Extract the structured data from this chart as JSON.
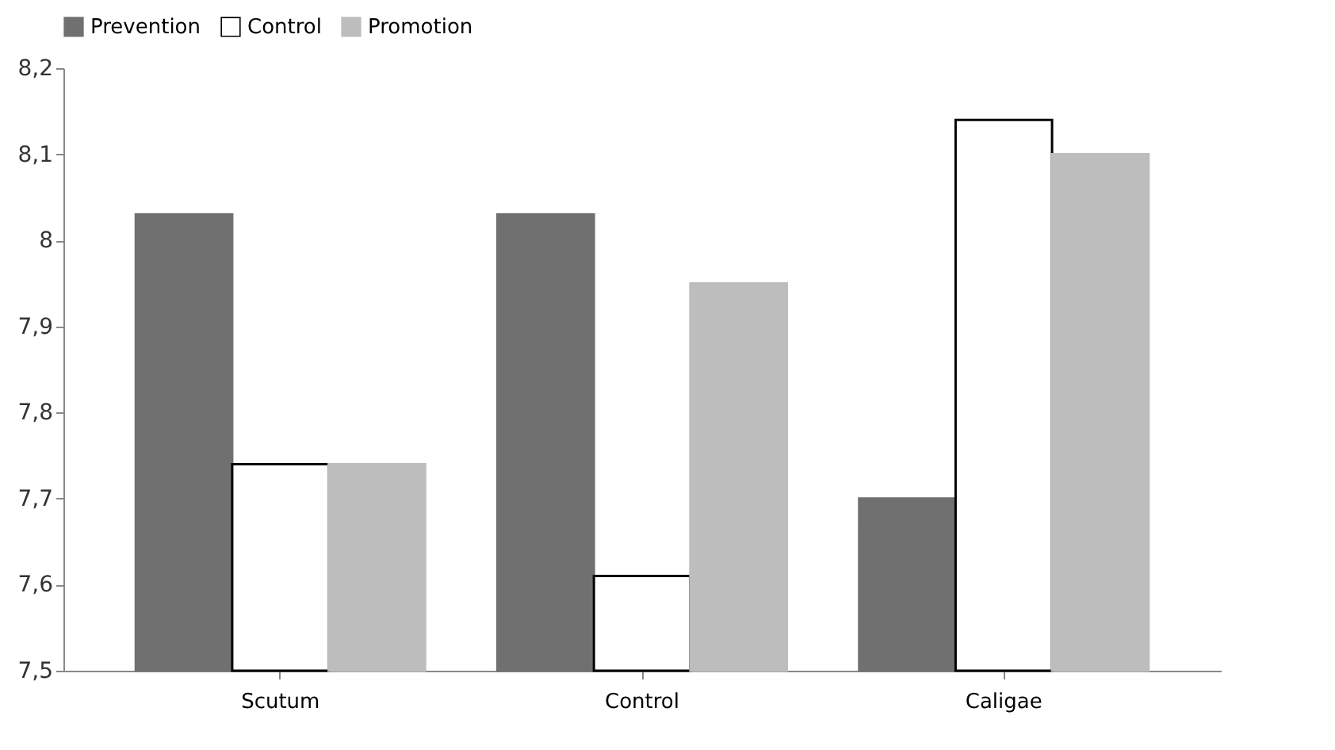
{
  "chart_data": {
    "type": "bar",
    "categories": [
      "Scutum",
      "Control",
      "Caligae"
    ],
    "series": [
      {
        "name": "Prevention",
        "color": "#707070",
        "values": [
          8.03,
          8.03,
          7.7
        ]
      },
      {
        "name": "Control",
        "color": "#ffffff",
        "values": [
          7.74,
          7.61,
          8.14
        ]
      },
      {
        "name": "Promotion",
        "color": "#bdbdbd",
        "values": [
          7.74,
          7.95,
          8.1
        ]
      }
    ],
    "ylim": [
      7.5,
      8.2
    ],
    "yticks": [
      {
        "value": 7.5,
        "label": "7,5"
      },
      {
        "value": 7.6,
        "label": "7,6"
      },
      {
        "value": 7.7,
        "label": "7,7"
      },
      {
        "value": 7.8,
        "label": "7,8"
      },
      {
        "value": 7.9,
        "label": "7,9"
      },
      8,
      {
        "value": 8.1,
        "label": "8,1"
      },
      {
        "value": 8.2,
        "label": "8,2"
      }
    ],
    "grid": false,
    "legend": "top"
  }
}
